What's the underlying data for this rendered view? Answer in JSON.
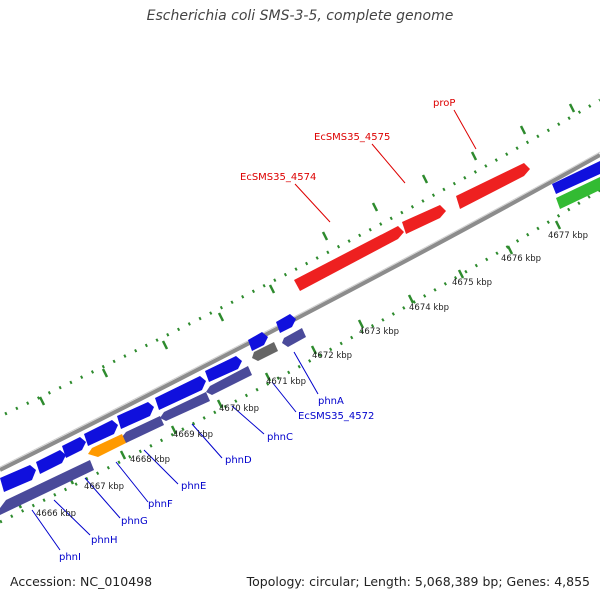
{
  "title": "Escherichia coli SMS-3-5, complete genome",
  "footer": {
    "accession": "Accession: NC_010498",
    "summary": "Topology: circular; Length: 5,068,389 bp; Genes: 4,855"
  },
  "colors": {
    "backbone": "#8c8c8c",
    "tick_dots": "#2e8b2e",
    "gene_forward": "#1010dd",
    "gene_reverse": "#4a4a9a",
    "gene_highlight": "#ee2020",
    "gene_orange": "#ff9a00",
    "gene_gray": "#666666",
    "gene_green": "#33bb33",
    "label_red": "#dd0000",
    "label_blue": "#0000cc"
  },
  "kbp_labels": [
    "4666 kbp",
    "4667 kbp",
    "4668 kbp",
    "4669 kbp",
    "4670 kbp",
    "4671 kbp",
    "4672 kbp",
    "4673 kbp",
    "4674 kbp",
    "4675 kbp",
    "4676 kbp",
    "4677 kbp"
  ],
  "red_labels": [
    "EcSMS35_4574",
    "EcSMS35_4575",
    "proP"
  ],
  "blue_labels": [
    "phnI",
    "phnH",
    "phnG",
    "phnF",
    "phnE",
    "phnD",
    "phnC",
    "EcSMS35_4572",
    "phnA"
  ]
}
